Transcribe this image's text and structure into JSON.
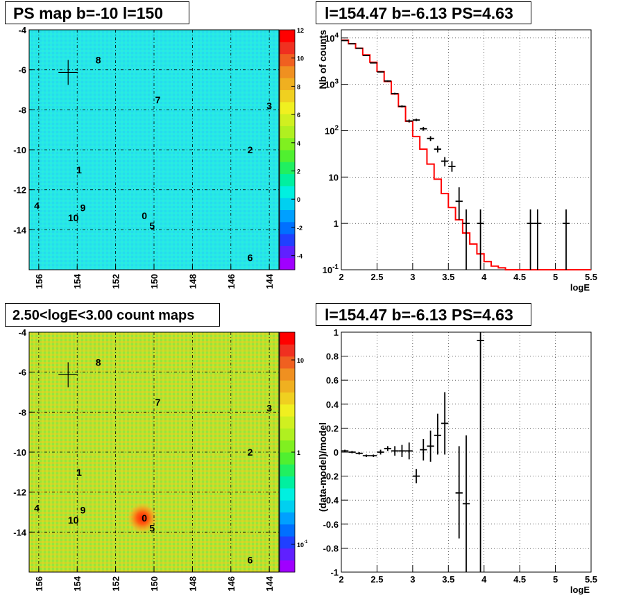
{
  "panels": {
    "ps_map_title": "PS map b=-10 l=150",
    "spectrum_title": "l=154.47 b=-6.13 PS=4.63",
    "count_map_title": "2.50<logE<3.00 count maps",
    "residual_title": "l=154.47 b=-6.13 PS=4.63"
  },
  "chart_data": [
    {
      "type": "heatmap",
      "title": "PS map b=-10 l=150",
      "xlabel": "",
      "ylabel": "",
      "xlim": [
        156.5,
        143.5
      ],
      "ylim": [
        -16,
        -4
      ],
      "x_ticks": [
        "156",
        "154",
        "152",
        "150",
        "148",
        "146",
        "144"
      ],
      "y_ticks": [
        "-4",
        "-6",
        "-8",
        "-10",
        "-12",
        "-14"
      ],
      "colorbar_ticks": [
        "12",
        "10",
        "8",
        "6",
        "4",
        "2",
        "0",
        "-2",
        "-4"
      ],
      "colorbar_range": [
        -5,
        12
      ],
      "grid": true,
      "sources": [
        {
          "label": "0",
          "l": 150.5,
          "b": -13.3
        },
        {
          "label": "1",
          "l": 153.9,
          "b": -11.0
        },
        {
          "label": "2",
          "l": 145.0,
          "b": -10.0
        },
        {
          "label": "3",
          "l": 144.0,
          "b": -7.8
        },
        {
          "label": "4",
          "l": 156.1,
          "b": -12.8
        },
        {
          "label": "5",
          "l": 150.1,
          "b": -13.8
        },
        {
          "label": "6",
          "l": 145.0,
          "b": -15.4
        },
        {
          "label": "7",
          "l": 149.8,
          "b": -7.5
        },
        {
          "label": "8",
          "l": 152.9,
          "b": -5.5
        },
        {
          "label": "9",
          "l": 153.7,
          "b": -12.9
        },
        {
          "label": "10",
          "l": 154.2,
          "b": -13.4
        }
      ],
      "cross": {
        "l": 154.47,
        "b": -6.13
      }
    },
    {
      "type": "line",
      "title": "l=154.47 b=-6.13 PS=4.63",
      "xlabel": "logE",
      "ylabel": "Nb of counts",
      "xlim": [
        2,
        5.5
      ],
      "ylim": [
        0.1,
        15000
      ],
      "yscale": "log",
      "grid": true,
      "x_ticks": [
        "2",
        "2.5",
        "3",
        "3.5",
        "4",
        "4.5",
        "5",
        "5.5"
      ],
      "y_ticks": [
        "10^-1",
        "1",
        "10",
        "10^2",
        "10^3",
        "10^4"
      ],
      "model_bins": {
        "edges": [
          2.0,
          2.1,
          2.2,
          2.3,
          2.4,
          2.5,
          2.6,
          2.7,
          2.8,
          2.9,
          3.0,
          3.1,
          3.2,
          3.3,
          3.4,
          3.5,
          3.6,
          3.7,
          3.8,
          3.9,
          4.0,
          4.1,
          4.2,
          4.3,
          4.4,
          4.5,
          4.6,
          4.7,
          4.8,
          4.9,
          5.0,
          5.1,
          5.2,
          5.3,
          5.4,
          5.5
        ],
        "values": [
          9000,
          7500,
          6000,
          4300,
          3000,
          1900,
          1150,
          620,
          330,
          160,
          75,
          40,
          19,
          9,
          4.4,
          2.2,
          1.2,
          0.62,
          0.36,
          0.22,
          0.15,
          0.12,
          0.11,
          0.1,
          0.1,
          0.1,
          0.1,
          0.1,
          0.1,
          0.1,
          0.1,
          0.1,
          0.1,
          0.1,
          0.1
        ],
        "color": "#ff0000"
      },
      "data_points": [
        {
          "x": 2.05,
          "y": 8800,
          "ylow": 8650,
          "yhigh": 8950
        },
        {
          "x": 2.15,
          "y": 7500,
          "ylow": 7400,
          "yhigh": 7600
        },
        {
          "x": 2.25,
          "y": 6000,
          "ylow": 5900,
          "yhigh": 6100
        },
        {
          "x": 2.35,
          "y": 4200,
          "ylow": 4100,
          "yhigh": 4300
        },
        {
          "x": 2.45,
          "y": 2900,
          "ylow": 2850,
          "yhigh": 2950
        },
        {
          "x": 2.55,
          "y": 1850,
          "ylow": 1800,
          "yhigh": 1900
        },
        {
          "x": 2.65,
          "y": 1180,
          "ylow": 1140,
          "yhigh": 1220
        },
        {
          "x": 2.75,
          "y": 630,
          "ylow": 600,
          "yhigh": 660
        },
        {
          "x": 2.85,
          "y": 335,
          "ylow": 318,
          "yhigh": 352
        },
        {
          "x": 2.95,
          "y": 162,
          "ylow": 150,
          "yhigh": 174
        },
        {
          "x": 3.05,
          "y": 170,
          "ylow": 160,
          "yhigh": 182
        },
        {
          "x": 3.15,
          "y": 110,
          "ylow": 100,
          "yhigh": 121
        },
        {
          "x": 3.25,
          "y": 68,
          "ylow": 60,
          "yhigh": 76
        },
        {
          "x": 3.35,
          "y": 40,
          "ylow": 34,
          "yhigh": 47
        },
        {
          "x": 3.45,
          "y": 22,
          "ylow": 17,
          "yhigh": 27
        },
        {
          "x": 3.55,
          "y": 17,
          "ylow": 13,
          "yhigh": 22
        },
        {
          "x": 3.65,
          "y": 3,
          "ylow": 1.2,
          "yhigh": 6
        },
        {
          "x": 3.75,
          "y": 1,
          "ylow": 0.1,
          "yhigh": 2
        },
        {
          "x": 3.95,
          "y": 1,
          "ylow": 0.1,
          "yhigh": 2
        },
        {
          "x": 4.65,
          "y": 1,
          "ylow": 0.1,
          "yhigh": 2
        },
        {
          "x": 4.75,
          "y": 1,
          "ylow": 0.1,
          "yhigh": 2
        },
        {
          "x": 5.15,
          "y": 1,
          "ylow": 0.1,
          "yhigh": 2
        }
      ]
    },
    {
      "type": "heatmap",
      "title": "2.50<logE<3.00 count maps",
      "xlabel": "",
      "ylabel": "",
      "xlim": [
        156.5,
        143.5
      ],
      "ylim": [
        -16,
        -4
      ],
      "yscale_colorbar": "log",
      "x_ticks": [
        "156",
        "154",
        "152",
        "150",
        "148",
        "146",
        "144"
      ],
      "y_ticks": [
        "-4",
        "-6",
        "-8",
        "-10",
        "-12",
        "-14"
      ],
      "colorbar_ticks": [
        "10",
        "1",
        "10^-1"
      ],
      "colorbar_range": [
        0.05,
        20
      ],
      "grid": true,
      "sources": [
        {
          "label": "0",
          "l": 150.5,
          "b": -13.3
        },
        {
          "label": "1",
          "l": 153.9,
          "b": -11.0
        },
        {
          "label": "2",
          "l": 145.0,
          "b": -10.0
        },
        {
          "label": "3",
          "l": 144.0,
          "b": -7.8
        },
        {
          "label": "4",
          "l": 156.1,
          "b": -12.8
        },
        {
          "label": "5",
          "l": 150.1,
          "b": -13.8
        },
        {
          "label": "6",
          "l": 145.0,
          "b": -15.4
        },
        {
          "label": "7",
          "l": 149.8,
          "b": -7.5
        },
        {
          "label": "8",
          "l": 152.9,
          "b": -5.5
        },
        {
          "label": "9",
          "l": 153.7,
          "b": -12.9
        },
        {
          "label": "10",
          "l": 154.2,
          "b": -13.4
        }
      ],
      "cross": {
        "l": 154.47,
        "b": -6.13
      },
      "bright_spot": {
        "l": 150.6,
        "b": -13.3
      }
    },
    {
      "type": "scatter",
      "title": "l=154.47 b=-6.13 PS=4.63",
      "xlabel": "logE",
      "ylabel": "(data-model)/model",
      "xlim": [
        2,
        5.5
      ],
      "ylim": [
        -1,
        1
      ],
      "grid": true,
      "x_ticks": [
        "2",
        "2.5",
        "3",
        "3.5",
        "4",
        "4.5",
        "5",
        "5.5"
      ],
      "y_ticks": [
        "-1",
        "-0.8",
        "-0.6",
        "-0.4",
        "-0.2",
        "0",
        "0.2",
        "0.4",
        "0.6",
        "0.8",
        "1"
      ],
      "data_points": [
        {
          "x": 2.05,
          "y": 0.01,
          "ylow": 0.0,
          "yhigh": 0.02
        },
        {
          "x": 2.15,
          "y": 0.0,
          "ylow": -0.01,
          "yhigh": 0.01
        },
        {
          "x": 2.25,
          "y": -0.01,
          "ylow": -0.02,
          "yhigh": 0.0
        },
        {
          "x": 2.35,
          "y": -0.03,
          "ylow": -0.04,
          "yhigh": -0.02
        },
        {
          "x": 2.45,
          "y": -0.03,
          "ylow": -0.04,
          "yhigh": -0.02
        },
        {
          "x": 2.55,
          "y": 0.0,
          "ylow": -0.02,
          "yhigh": 0.02
        },
        {
          "x": 2.65,
          "y": 0.03,
          "ylow": 0.01,
          "yhigh": 0.05
        },
        {
          "x": 2.75,
          "y": 0.01,
          "ylow": -0.03,
          "yhigh": 0.05
        },
        {
          "x": 2.85,
          "y": 0.01,
          "ylow": -0.04,
          "yhigh": 0.06
        },
        {
          "x": 2.95,
          "y": 0.01,
          "ylow": -0.06,
          "yhigh": 0.08
        },
        {
          "x": 3.05,
          "y": -0.2,
          "ylow": -0.26,
          "yhigh": -0.14
        },
        {
          "x": 3.15,
          "y": 0.02,
          "ylow": -0.07,
          "yhigh": 0.11
        },
        {
          "x": 3.25,
          "y": 0.05,
          "ylow": -0.08,
          "yhigh": 0.18
        },
        {
          "x": 3.35,
          "y": 0.14,
          "ylow": -0.02,
          "yhigh": 0.32
        },
        {
          "x": 3.45,
          "y": 0.24,
          "ylow": -0.02,
          "yhigh": 0.5
        },
        {
          "x": 3.65,
          "y": -0.34,
          "ylow": -0.72,
          "yhigh": 0.05
        },
        {
          "x": 3.75,
          "y": -0.43,
          "ylow": -1.0,
          "yhigh": 0.14
        },
        {
          "x": 3.95,
          "y": 0.93,
          "ylow": -1.0,
          "yhigh": 1.0
        }
      ]
    }
  ]
}
